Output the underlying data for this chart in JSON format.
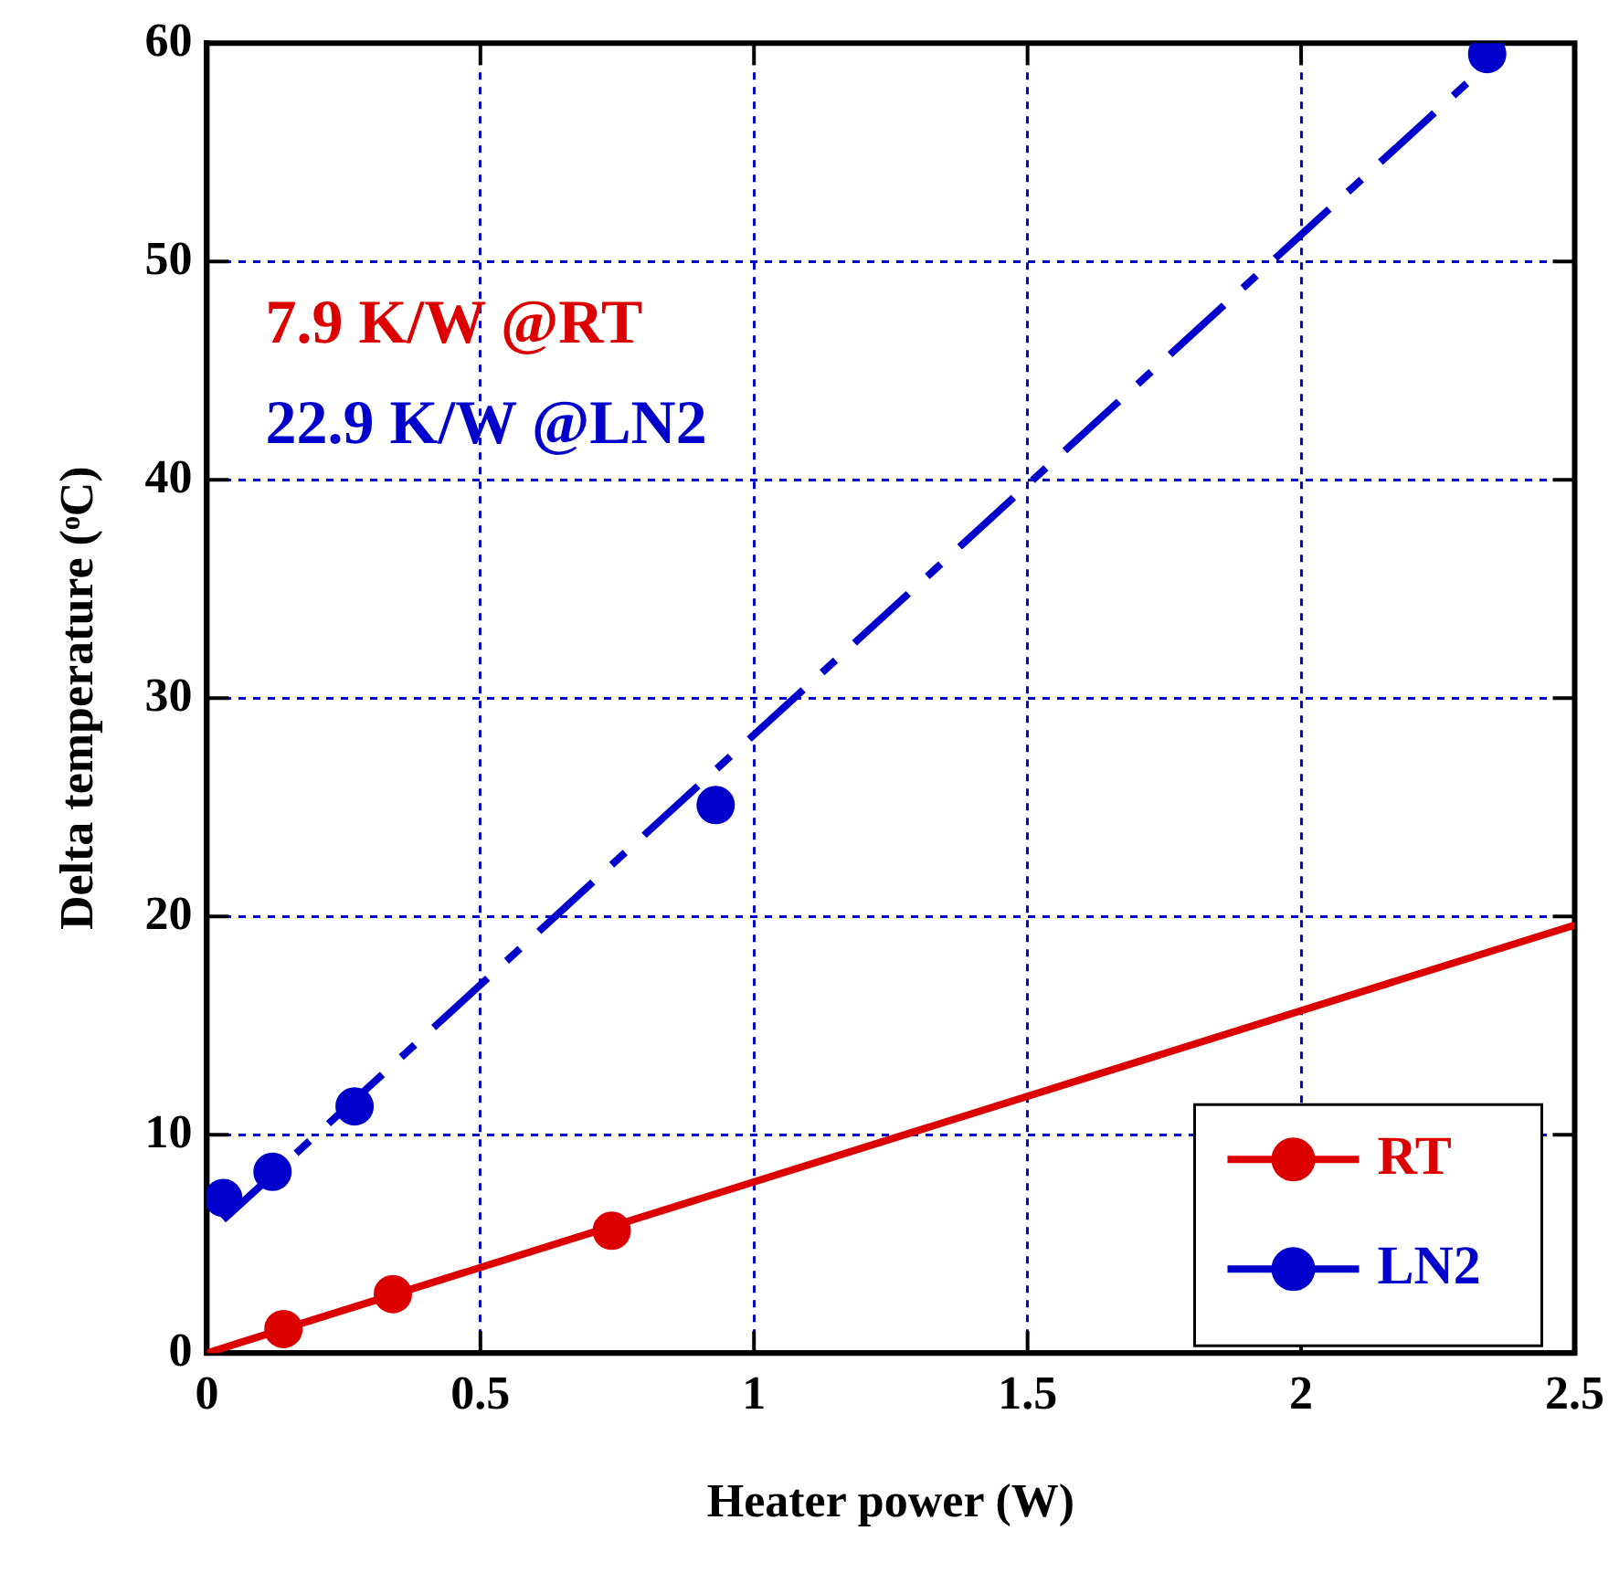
{
  "chart_data": {
    "type": "scatter",
    "xlabel": "Heater power (W)",
    "ylabel": "Delta temperature (ᵒC)",
    "annotations": [
      "7.9 K/W @RT",
      "22.9 K/W @LN2"
    ],
    "series": [
      {
        "name": "RT",
        "color": "#dd0000",
        "marker": "circle",
        "x": [
          0.14,
          0.34,
          0.74
        ],
        "values": [
          1.1,
          2.7,
          5.6
        ]
      },
      {
        "name": "LN2",
        "color": "#0000cc",
        "marker": "circle",
        "x": [
          0.03,
          0.12,
          0.27,
          0.93,
          2.34
        ],
        "values": [
          7.1,
          8.3,
          11.3,
          25.1,
          59.5
        ]
      },
      {
        "type": "line",
        "color": "#dd0000",
        "x": [
          0,
          2.5
        ],
        "values": [
          0,
          19.6
        ],
        "line_style": "solid"
      },
      {
        "type": "line",
        "color": "#0000cc",
        "x": [
          0.03,
          2.37
        ],
        "values": [
          6.1,
          59.7
        ],
        "line_style": "dashed"
      }
    ],
    "xlim": [
      0,
      2.5
    ],
    "xticks": [
      0,
      0.5,
      1,
      1.5,
      2,
      2.5
    ],
    "ylim": [
      0,
      60
    ],
    "yticks": [
      0,
      10,
      20,
      30,
      40,
      50,
      60
    ],
    "grid": true,
    "legend": "bottom right"
  }
}
